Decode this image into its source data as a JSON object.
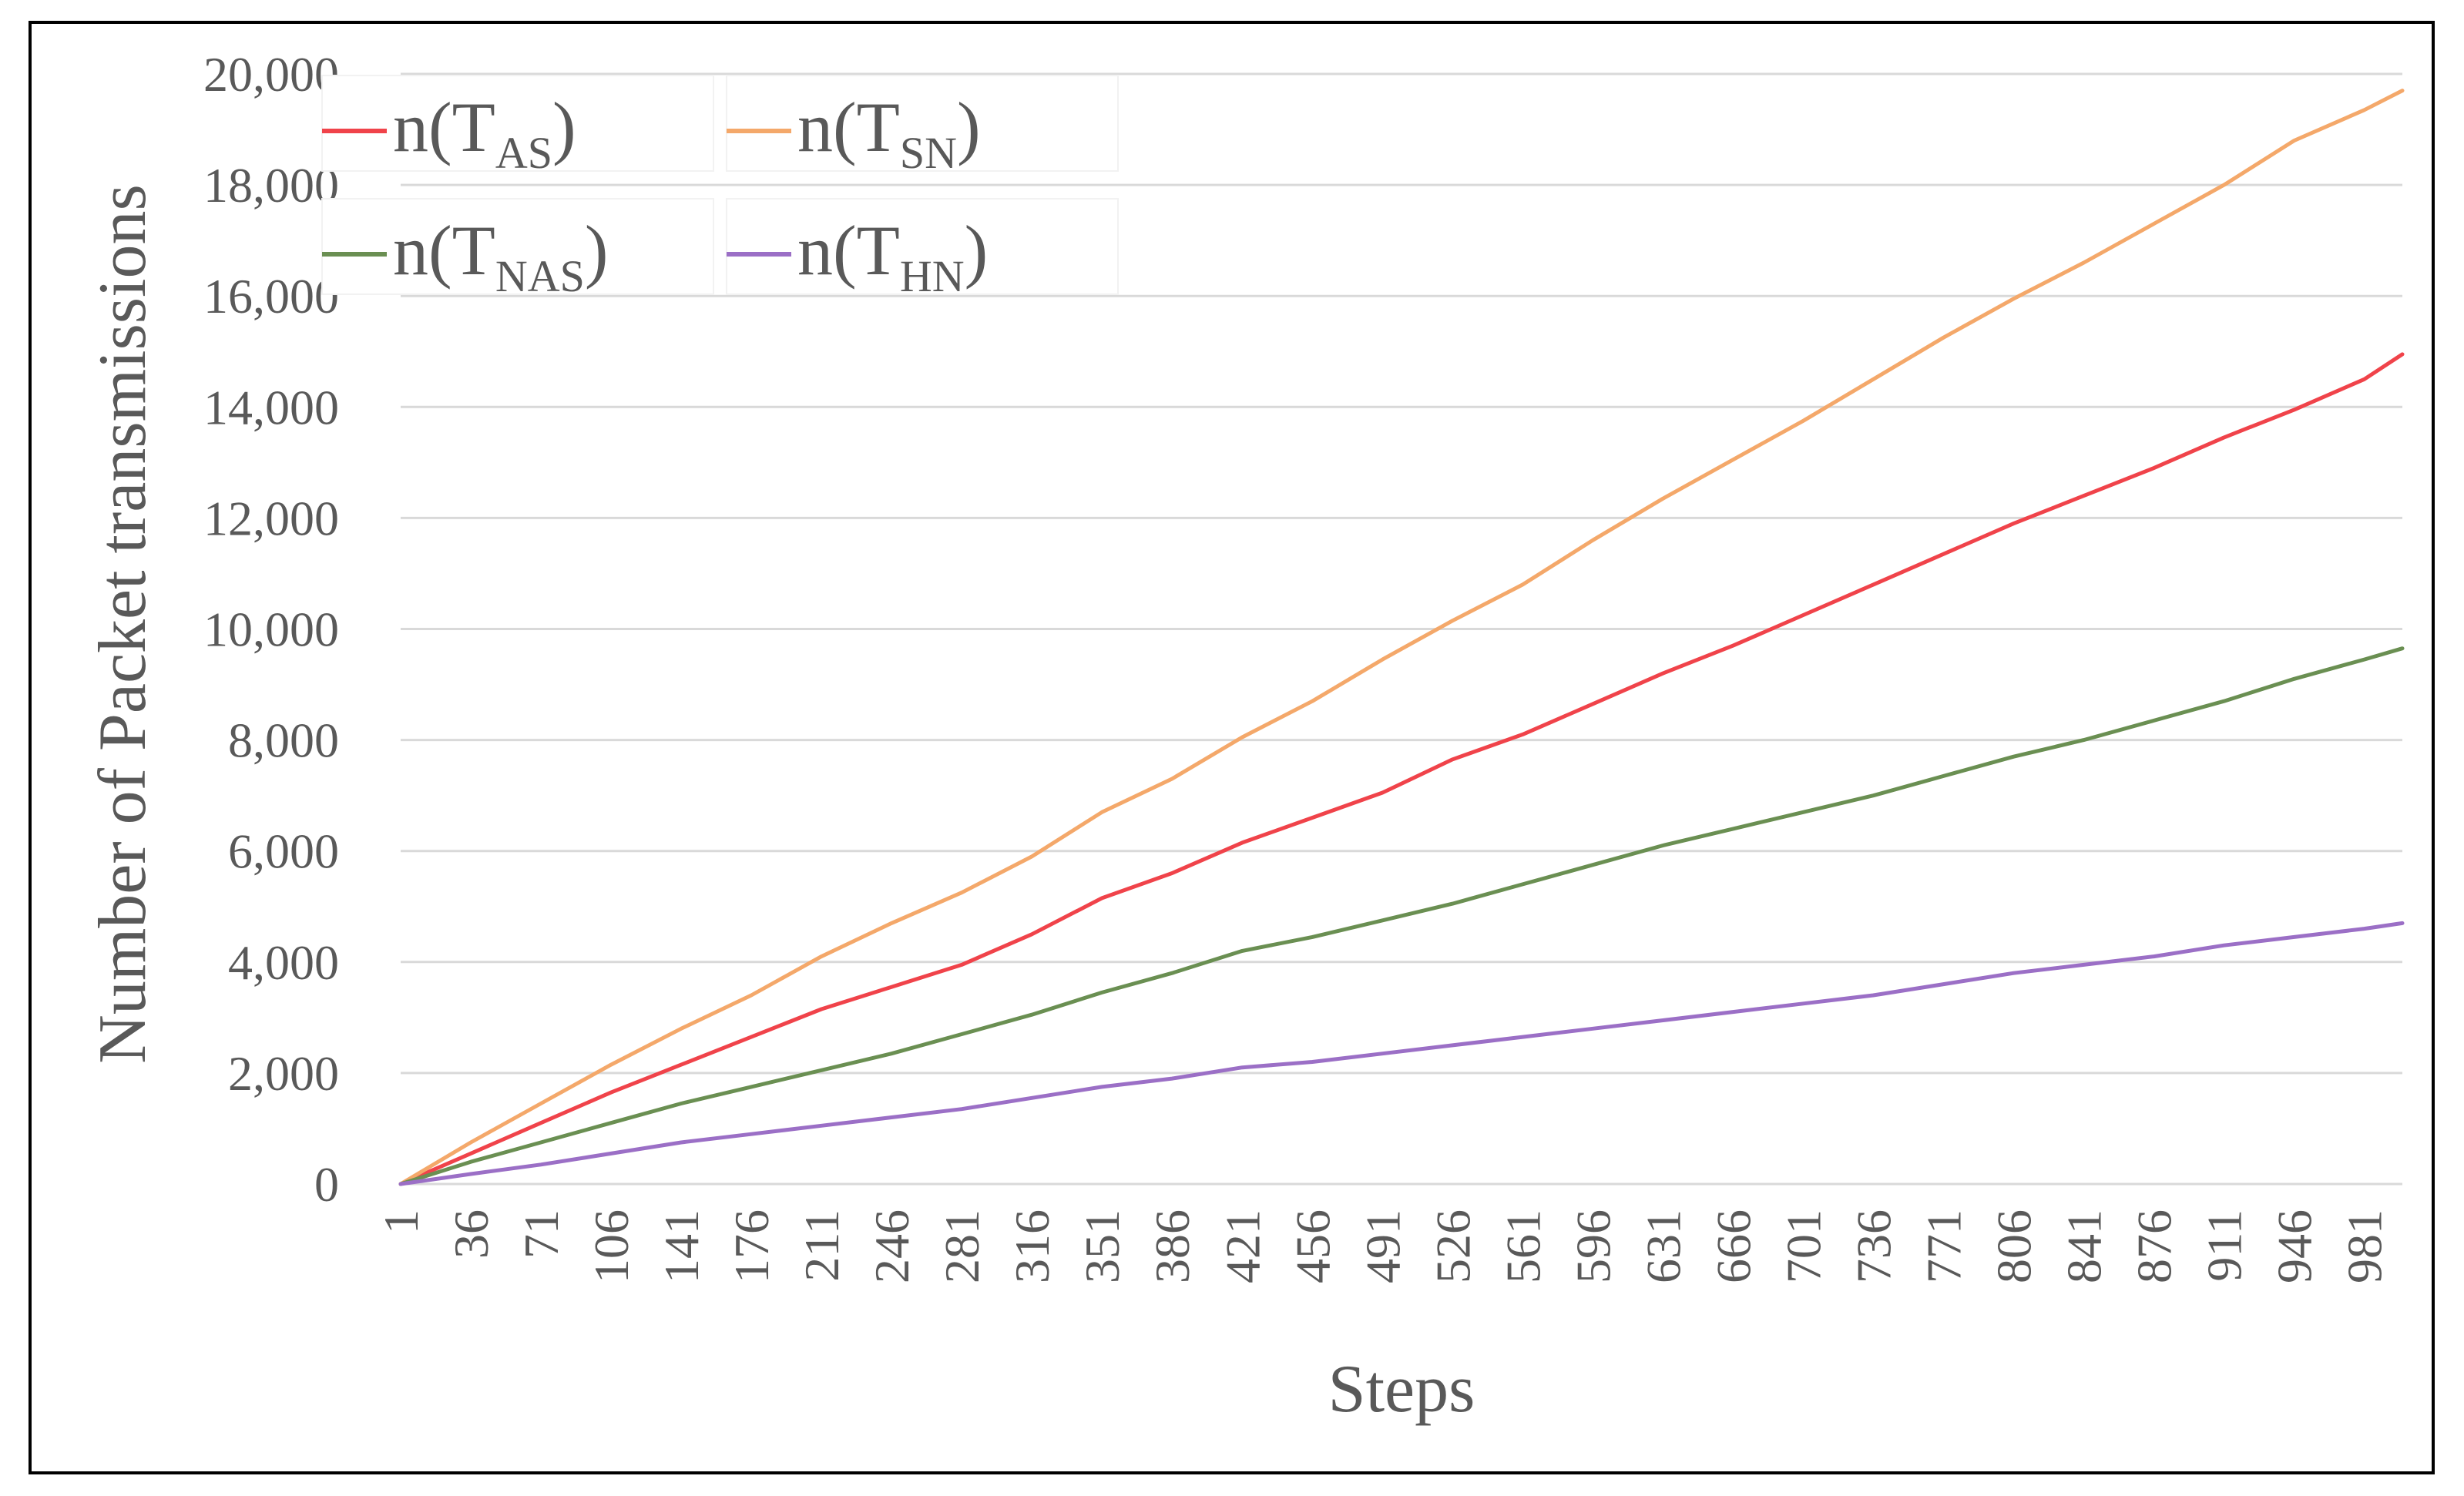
{
  "chart_data": {
    "type": "line",
    "title": "",
    "xlabel": "Steps",
    "ylabel": "Number of Packet transmissions",
    "xlim": [
      1,
      1000
    ],
    "ylim": [
      0,
      20000
    ],
    "y_ticks": [
      0,
      2000,
      4000,
      6000,
      8000,
      10000,
      12000,
      14000,
      16000,
      18000,
      20000
    ],
    "y_tick_labels": [
      "0",
      "2,000",
      "4,000",
      "6,000",
      "8,000",
      "10,000",
      "12,000",
      "14,000",
      "16,000",
      "18,000",
      "20,000"
    ],
    "x_ticks": [
      1,
      36,
      71,
      106,
      141,
      176,
      211,
      246,
      281,
      316,
      351,
      386,
      421,
      456,
      491,
      526,
      561,
      596,
      631,
      666,
      701,
      736,
      771,
      806,
      841,
      876,
      911,
      946,
      981
    ],
    "x_tick_labels": [
      "1",
      "36",
      "71",
      "106",
      "141",
      "176",
      "211",
      "246",
      "281",
      "316",
      "351",
      "386",
      "421",
      "456",
      "491",
      "526",
      "561",
      "596",
      "631",
      "666",
      "701",
      "736",
      "771",
      "806",
      "841",
      "876",
      "911",
      "946",
      "981"
    ],
    "grid": "horizontal",
    "legend_position": "top-left",
    "x": [
      1,
      36,
      71,
      106,
      141,
      176,
      211,
      246,
      281,
      316,
      351,
      386,
      421,
      456,
      491,
      526,
      561,
      596,
      631,
      666,
      701,
      736,
      771,
      806,
      841,
      876,
      911,
      946,
      981,
      1000
    ],
    "series": [
      {
        "name": "n(T_AS)",
        "label_main": "n(T",
        "label_sub": "AS",
        "label_end": ")",
        "color": "#f0434a",
        "values": [
          0,
          550,
          1100,
          1650,
          2150,
          2650,
          3150,
          3550,
          3950,
          4500,
          5150,
          5600,
          6150,
          6600,
          7050,
          7650,
          8100,
          8650,
          9200,
          9700,
          10250,
          10800,
          11350,
          11900,
          12400,
          12900,
          13450,
          13950,
          14500,
          14950
        ]
      },
      {
        "name": "n(T_SN)",
        "label_main": "n(T",
        "label_sub": "SN",
        "label_end": ")",
        "color": "#f4a86a",
        "values": [
          0,
          750,
          1450,
          2150,
          2800,
          3400,
          4100,
          4700,
          5250,
          5900,
          6700,
          7300,
          8050,
          8700,
          9450,
          10150,
          10800,
          11600,
          12350,
          13050,
          13750,
          14500,
          15250,
          15950,
          16600,
          17300,
          18000,
          18800,
          19350,
          19700
        ]
      },
      {
        "name": "n(T_NAS)",
        "label_main": "n(T",
        "label_sub": "NAS",
        "label_end": ")",
        "color": "#6a8f52",
        "values": [
          0,
          400,
          750,
          1100,
          1450,
          1750,
          2050,
          2350,
          2700,
          3050,
          3450,
          3800,
          4200,
          4450,
          4750,
          5050,
          5400,
          5750,
          6100,
          6400,
          6700,
          7000,
          7350,
          7700,
          8000,
          8350,
          8700,
          9100,
          9450,
          9650
        ]
      },
      {
        "name": "n(T_HN)",
        "label_main": "n(T",
        "label_sub": "HN",
        "label_end": ")",
        "color": "#9b6fc6",
        "values": [
          0,
          180,
          350,
          550,
          750,
          900,
          1050,
          1200,
          1350,
          1550,
          1750,
          1900,
          2100,
          2200,
          2350,
          2500,
          2650,
          2800,
          2950,
          3100,
          3250,
          3400,
          3600,
          3800,
          3950,
          4100,
          4300,
          4450,
          4600,
          4700
        ]
      }
    ]
  }
}
